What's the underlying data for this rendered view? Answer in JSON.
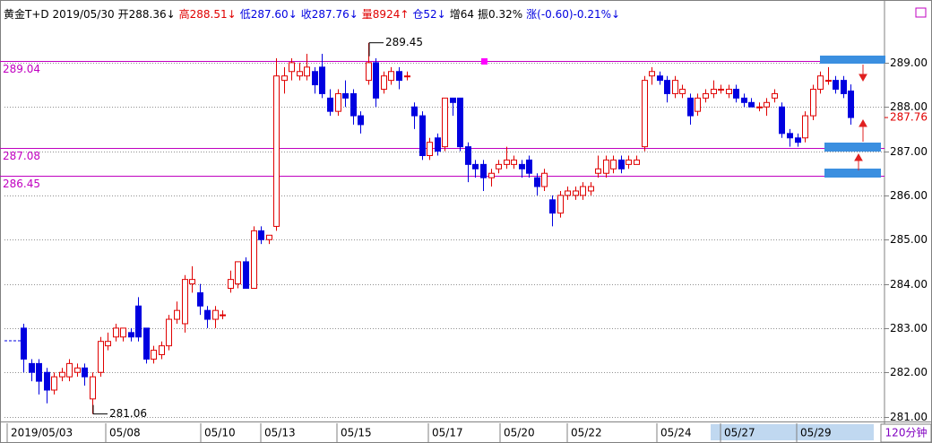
{
  "chart_data": {
    "type": "candlestick",
    "header": [
      {
        "text": "黄金T+D 2019/05/30",
        "color": "#000000"
      },
      {
        "text": "开288.36↓",
        "color": "#000000"
      },
      {
        "text": "高288.51↓",
        "color": "#e00000"
      },
      {
        "text": "低287.60↓",
        "color": "#0000e0"
      },
      {
        "text": "收287.76↓",
        "color": "#0000e0"
      },
      {
        "text": "量8924↑",
        "color": "#e00000"
      },
      {
        "text": "仓52↓",
        "color": "#0000e0"
      },
      {
        "text": "增64",
        "color": "#000000"
      },
      {
        "text": "振0.32%",
        "color": "#000000"
      },
      {
        "text": "涨(-0.60)-0.21%↓",
        "color": "#0000e0"
      }
    ],
    "period": "120分钟",
    "x_labels": [
      "2019/05/03",
      "05/08",
      "05/10",
      "05/13",
      "05/15",
      "05/17",
      "05/20",
      "05/22",
      "05/24",
      "05/27",
      "05/29"
    ],
    "up_color": "#e00000",
    "down_color": "#0000e0",
    "open": [
      283.0,
      282.2,
      282.2,
      282.0,
      281.6,
      281.9,
      281.9,
      282.0,
      282.1,
      281.4,
      282.0,
      282.6,
      282.8,
      282.8,
      282.9,
      283.5,
      283.0,
      282.3,
      282.4,
      282.6,
      283.2,
      283.1,
      284.0,
      283.8,
      283.4,
      283.2,
      283.3,
      283.9,
      284.0,
      284.5,
      283.9,
      285.2,
      285.0,
      285.3,
      288.6,
      288.8,
      288.7,
      288.7,
      288.8,
      288.9,
      288.2,
      287.9,
      288.3,
      288.3,
      287.8,
      288.6,
      289.0,
      288.4,
      288.6,
      288.8,
      288.7,
      288.0,
      287.8,
      286.9,
      287.3,
      287.1,
      288.2,
      288.2,
      287.1,
      286.7,
      286.7,
      286.4,
      286.6,
      286.7,
      286.7,
      286.7,
      286.8,
      286.4,
      286.2,
      285.9,
      285.6,
      286.0,
      286.0,
      286.0,
      286.1,
      286.5,
      286.5,
      286.6,
      286.8,
      286.7,
      286.7,
      287.1,
      288.7,
      288.7,
      288.6,
      288.3,
      288.3,
      288.2,
      287.9,
      288.2,
      288.3,
      288.4,
      288.3,
      288.4,
      288.2,
      288.1,
      288.0,
      288.0,
      288.2,
      288.0,
      287.4,
      287.3,
      287.3,
      287.8,
      288.4,
      288.6,
      288.6,
      288.6,
      288.36
    ],
    "high": [
      283.1,
      282.3,
      282.3,
      282.1,
      282.0,
      282.1,
      282.3,
      282.2,
      282.2,
      282.0,
      282.8,
      282.9,
      283.1,
      283.0,
      283.0,
      283.7,
      283.0,
      282.6,
      282.7,
      283.3,
      283.6,
      284.2,
      284.4,
      284.0,
      283.5,
      283.5,
      283.4,
      284.3,
      284.5,
      284.6,
      285.3,
      285.3,
      285.1,
      289.1,
      288.9,
      289.1,
      289.0,
      289.2,
      288.9,
      289.2,
      288.4,
      288.4,
      288.6,
      288.4,
      287.9,
      289.45,
      289.1,
      288.8,
      288.9,
      288.9,
      288.8,
      288.1,
      287.9,
      287.3,
      287.4,
      288.2,
      288.2,
      288.2,
      287.2,
      286.8,
      286.8,
      286.6,
      286.8,
      287.1,
      286.9,
      286.8,
      286.9,
      286.5,
      286.6,
      286.0,
      286.1,
      286.2,
      286.2,
      286.3,
      286.3,
      286.9,
      286.9,
      286.9,
      286.9,
      286.9,
      286.9,
      288.7,
      288.9,
      288.8,
      288.7,
      288.7,
      288.5,
      288.3,
      288.3,
      288.4,
      288.6,
      288.5,
      288.5,
      288.5,
      288.3,
      288.2,
      288.1,
      288.2,
      288.4,
      288.1,
      287.5,
      287.4,
      287.9,
      288.5,
      288.8,
      288.9,
      288.7,
      288.7,
      288.51
    ],
    "low": [
      282.0,
      281.8,
      281.5,
      281.3,
      281.5,
      281.8,
      281.8,
      281.9,
      281.7,
      281.06,
      281.9,
      282.5,
      282.7,
      282.7,
      282.7,
      282.7,
      282.2,
      282.2,
      282.3,
      282.5,
      283.1,
      282.9,
      283.8,
      283.3,
      283.0,
      283.0,
      283.2,
      283.8,
      283.9,
      283.9,
      283.9,
      284.9,
      284.9,
      285.2,
      288.3,
      288.6,
      288.6,
      288.6,
      288.3,
      288.2,
      287.8,
      287.8,
      288.0,
      287.6,
      287.4,
      288.5,
      288.0,
      288.3,
      288.5,
      288.4,
      288.6,
      287.5,
      286.8,
      286.8,
      286.9,
      287.0,
      287.8,
      287.0,
      286.3,
      286.4,
      286.1,
      286.2,
      286.5,
      286.6,
      286.6,
      286.4,
      286.4,
      286.0,
      286.1,
      285.3,
      285.5,
      285.9,
      285.9,
      285.9,
      286.0,
      286.4,
      286.4,
      286.5,
      286.5,
      286.6,
      286.7,
      287.0,
      288.5,
      288.5,
      288.1,
      288.2,
      288.2,
      287.6,
      287.8,
      288.1,
      288.2,
      288.3,
      288.2,
      288.1,
      288.0,
      288.0,
      287.9,
      287.8,
      288.1,
      287.3,
      287.1,
      287.1,
      287.2,
      287.7,
      288.3,
      288.5,
      288.3,
      288.2,
      287.6
    ],
    "close": [
      282.3,
      282.0,
      281.8,
      281.6,
      281.9,
      282.0,
      282.2,
      282.1,
      281.9,
      281.9,
      282.7,
      282.7,
      283.0,
      283.0,
      282.8,
      282.8,
      282.3,
      282.5,
      282.6,
      283.2,
      283.4,
      284.1,
      284.1,
      283.5,
      283.2,
      283.4,
      283.3,
      284.1,
      284.5,
      283.9,
      285.2,
      285.0,
      285.1,
      288.7,
      288.7,
      289.0,
      288.8,
      288.9,
      288.5,
      288.3,
      287.9,
      288.3,
      288.2,
      287.8,
      287.6,
      289.0,
      288.2,
      288.7,
      288.8,
      288.6,
      288.7,
      287.8,
      286.9,
      287.2,
      287.0,
      288.2,
      288.1,
      287.1,
      286.7,
      286.6,
      286.4,
      286.5,
      286.7,
      286.8,
      286.8,
      286.6,
      286.5,
      286.2,
      286.5,
      285.6,
      286.0,
      286.1,
      286.1,
      286.2,
      286.2,
      286.6,
      286.8,
      286.8,
      286.6,
      286.8,
      286.8,
      288.6,
      288.8,
      288.6,
      288.3,
      288.6,
      288.4,
      287.8,
      288.2,
      288.3,
      288.4,
      288.4,
      288.4,
      288.2,
      288.1,
      288.0,
      288.0,
      288.1,
      288.3,
      287.4,
      287.3,
      287.2,
      287.8,
      288.4,
      288.7,
      288.6,
      288.4,
      288.3,
      287.76
    ],
    "hlines": [
      289.04,
      287.08,
      286.45
    ],
    "hline_color": "#c000c0",
    "annotations": [
      289.45,
      281.06
    ],
    "last_price": 287.76,
    "ylim": [
      280.89,
      289.91
    ],
    "yticks": [
      {
        "value": 281,
        "label": "281.00"
      },
      {
        "value": 282,
        "label": "282.00"
      },
      {
        "value": 283,
        "label": "283.00"
      },
      {
        "value": 284,
        "label": "284.00"
      },
      {
        "value": 285,
        "label": "285.00"
      },
      {
        "value": 286,
        "label": "286.00"
      },
      {
        "value": 287,
        "label": "287.00"
      },
      {
        "value": 288,
        "label": "288.00"
      },
      {
        "value": 289,
        "label": "289.00"
      }
    ],
    "grid": true
  }
}
